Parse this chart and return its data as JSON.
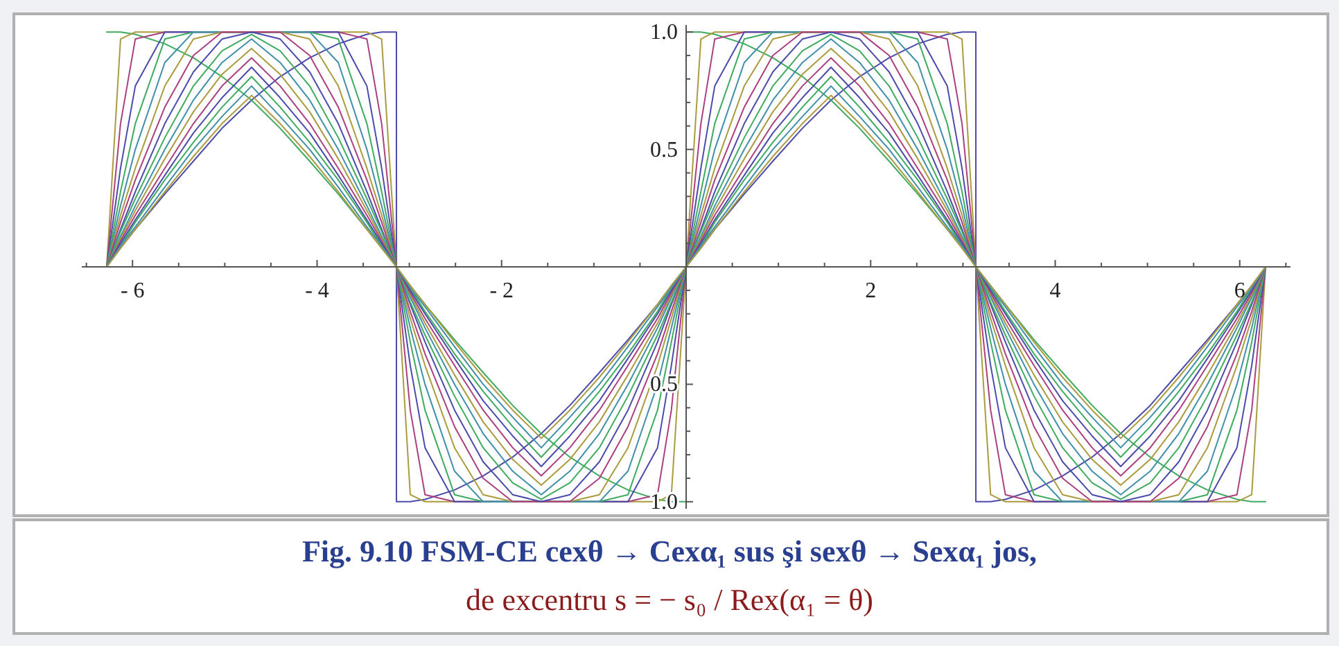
{
  "chart_data": {
    "type": "line",
    "title": "Fig. 9.10 FSM-CE cexθ → Cexα₁ sus şi sexθ → Sexα₁  jos,",
    "subtitle": "de excentru s = − s₀  /  Rex(α₁ = θ)",
    "xlim": [
      -6.55,
      6.55
    ],
    "ylim": [
      -1.03,
      1.03
    ],
    "xticks": [
      {
        "value": -6.5,
        "label": null
      },
      {
        "value": -6,
        "label": "- 6"
      },
      {
        "value": -5.5,
        "label": null
      },
      {
        "value": -5,
        "label": null
      },
      {
        "value": -4.5,
        "label": null
      },
      {
        "value": -4,
        "label": "- 4"
      },
      {
        "value": -3.5,
        "label": null
      },
      {
        "value": -3,
        "label": null
      },
      {
        "value": -2.5,
        "label": null
      },
      {
        "value": -2,
        "label": "- 2"
      },
      {
        "value": -1.5,
        "label": null
      },
      {
        "value": -1,
        "label": null
      },
      {
        "value": -0.5,
        "label": null
      },
      {
        "value": 0.5,
        "label": null
      },
      {
        "value": 1,
        "label": null
      },
      {
        "value": 1.5,
        "label": null
      },
      {
        "value": 2,
        "label": "2"
      },
      {
        "value": 2.5,
        "label": null
      },
      {
        "value": 3,
        "label": null
      },
      {
        "value": 3.5,
        "label": null
      },
      {
        "value": 4,
        "label": "4"
      },
      {
        "value": 4.5,
        "label": null
      },
      {
        "value": 5,
        "label": null
      },
      {
        "value": 5.5,
        "label": null
      },
      {
        "value": 6,
        "label": "6"
      },
      {
        "value": 6.5,
        "label": null
      }
    ],
    "yticks": [
      {
        "value": -1,
        "label": "1.0"
      },
      {
        "value": -0.9,
        "label": null
      },
      {
        "value": -0.8,
        "label": null
      },
      {
        "value": -0.7,
        "label": null
      },
      {
        "value": -0.6,
        "label": null
      },
      {
        "value": -0.5,
        "label": "0.5"
      },
      {
        "value": -0.4,
        "label": null
      },
      {
        "value": -0.3,
        "label": null
      },
      {
        "value": -0.2,
        "label": null
      },
      {
        "value": -0.1,
        "label": null
      },
      {
        "value": 0.1,
        "label": null
      },
      {
        "value": 0.2,
        "label": null
      },
      {
        "value": 0.3,
        "label": null
      },
      {
        "value": 0.4,
        "label": null
      },
      {
        "value": 0.5,
        "label": "0.5"
      },
      {
        "value": 0.6,
        "label": null
      },
      {
        "value": 0.7,
        "label": null
      },
      {
        "value": 0.8,
        "label": null
      },
      {
        "value": 0.9,
        "label": null
      },
      {
        "value": 1,
        "label": "1.0"
      }
    ],
    "x": [
      -6.28,
      -6.13,
      -5.97,
      -5.65,
      -5.34,
      -5.03,
      -4.71,
      -4.4,
      -4.08,
      -3.77,
      -3.46,
      -3.3,
      -3.14,
      -3.14,
      -2.99,
      -2.83,
      -2.51,
      -2.2,
      -1.88,
      -1.57,
      -1.26,
      -0.94,
      -0.63,
      -0.31,
      -0.16,
      0,
      0,
      0.16,
      0.31,
      0.63,
      0.94,
      1.26,
      1.57,
      1.88,
      2.2,
      2.51,
      2.83,
      2.99,
      3.14,
      3.14,
      3.3,
      3.46,
      3.77,
      4.08,
      4.4,
      4.71,
      5.03,
      5.34,
      5.65,
      5.97,
      6.13,
      6.28
    ],
    "series": [
      {
        "color": "#4b4bab",
        "values": [
          0,
          0.08,
          0.16,
          0.31,
          0.45,
          0.59,
          0.71,
          0.81,
          0.89,
          0.95,
          0.99,
          1,
          1,
          -1,
          -1,
          -0.99,
          -0.95,
          -0.89,
          -0.81,
          -0.71,
          -0.59,
          -0.45,
          -0.31,
          -0.16,
          -0.08,
          0,
          0,
          0.08,
          0.16,
          0.31,
          0.45,
          0.59,
          0.71,
          0.81,
          0.89,
          0.95,
          0.99,
          1,
          1,
          -1,
          -1,
          -0.99,
          -0.95,
          -0.89,
          -0.81,
          -0.71,
          -0.59,
          -0.45,
          -0.31,
          -0.16,
          -0.08,
          0
        ]
      },
      {
        "color": "#3fab5f",
        "values": [
          1,
          1,
          0.99,
          0.95,
          0.89,
          0.81,
          0.71,
          0.59,
          0.45,
          0.31,
          0.16,
          0.08,
          0,
          0,
          -0.08,
          -0.16,
          -0.31,
          -0.45,
          -0.59,
          -0.71,
          -0.81,
          -0.89,
          -0.95,
          -0.99,
          -1,
          -1,
          1,
          1,
          0.99,
          0.95,
          0.89,
          0.81,
          0.71,
          0.59,
          0.45,
          0.31,
          0.16,
          0.08,
          0,
          0,
          -0.08,
          -0.16,
          -0.31,
          -0.45,
          -0.59,
          -0.71,
          -0.81,
          -0.89,
          -0.95,
          -0.99,
          -1,
          -1
        ]
      },
      {
        "color": "#ab9b3f",
        "values": [
          0,
          0.97,
          1,
          1,
          1,
          1,
          1,
          1,
          1,
          1,
          1,
          0.97,
          0,
          0,
          -0.97,
          -1,
          -1,
          -1,
          -1,
          -1,
          -1,
          -1,
          -1,
          -1,
          -0.97,
          0,
          0,
          0.97,
          1,
          1,
          1,
          1,
          1,
          1,
          1,
          1,
          1,
          0.97,
          0,
          0,
          -0.97,
          -1,
          -1,
          -1,
          -1,
          -1,
          -1,
          -1,
          -1,
          -1,
          -0.97,
          0
        ]
      },
      {
        "color": "#ab3f7f",
        "values": [
          0,
          0.61,
          0.97,
          1,
          1,
          1,
          1,
          1,
          1,
          1,
          0.97,
          0.61,
          0,
          0,
          -0.61,
          -0.97,
          -1,
          -1,
          -1,
          -1,
          -1,
          -1,
          -1,
          -0.97,
          -0.61,
          0,
          0,
          0.61,
          0.97,
          1,
          1,
          1,
          1,
          1,
          1,
          1,
          0.97,
          0.61,
          0,
          0,
          -0.61,
          -0.97,
          -1,
          -1,
          -1,
          -1,
          -1,
          -1,
          -1,
          -0.97,
          -0.61,
          0
        ]
      },
      {
        "color": "#4b4bab",
        "values": [
          0,
          0.42,
          0.77,
          1,
          1,
          1,
          1,
          1,
          1,
          1,
          0.77,
          0.42,
          0,
          0,
          -0.42,
          -0.77,
          -1,
          -1,
          -1,
          -1,
          -1,
          -1,
          -1,
          -0.77,
          -0.42,
          0,
          0,
          0.42,
          0.77,
          1,
          1,
          1,
          1,
          1,
          1,
          1,
          0.77,
          0.42,
          0,
          0,
          -0.42,
          -0.77,
          -1,
          -1,
          -1,
          -1,
          -1,
          -1,
          -1,
          -0.77,
          -0.42,
          0
        ]
      },
      {
        "color": "#3fab5f",
        "values": [
          0,
          0.32,
          0.61,
          0.97,
          1,
          1,
          1,
          1,
          1,
          0.97,
          0.61,
          0.32,
          0,
          0,
          -0.32,
          -0.61,
          -0.97,
          -1,
          -1,
          -1,
          -1,
          -1,
          -0.97,
          -0.61,
          -0.32,
          0,
          0,
          0.32,
          0.61,
          0.97,
          1,
          1,
          1,
          1,
          1,
          0.97,
          0.61,
          0.32,
          0,
          0,
          -0.32,
          -0.61,
          -0.97,
          -1,
          -1,
          -1,
          -1,
          -1,
          -0.97,
          -0.61,
          -0.32,
          0
        ]
      },
      {
        "color": "#3f8fab",
        "values": [
          0,
          0.26,
          0.5,
          0.87,
          1,
          1,
          1,
          1,
          1,
          0.87,
          0.5,
          0.26,
          0,
          0,
          -0.26,
          -0.5,
          -0.87,
          -1,
          -1,
          -1,
          -1,
          -1,
          -0.87,
          -0.5,
          -0.26,
          0,
          0,
          0.26,
          0.5,
          0.87,
          1,
          1,
          1,
          1,
          1,
          0.87,
          0.5,
          0.26,
          0,
          0,
          -0.26,
          -0.5,
          -0.87,
          -1,
          -1,
          -1,
          -1,
          -1,
          -0.87,
          -0.5,
          -0.26,
          0
        ]
      },
      {
        "color": "#ab9b3f",
        "values": [
          0,
          0.22,
          0.42,
          0.77,
          0.97,
          1,
          1,
          1,
          0.97,
          0.77,
          0.42,
          0.22,
          0,
          0,
          -0.22,
          -0.42,
          -0.77,
          -0.97,
          -1,
          -1,
          -1,
          -0.97,
          -0.77,
          -0.42,
          -0.22,
          0,
          0,
          0.22,
          0.42,
          0.77,
          0.97,
          1,
          1,
          1,
          0.97,
          0.77,
          0.42,
          0.22,
          0,
          0,
          -0.22,
          -0.42,
          -0.77,
          -0.97,
          -1,
          -1,
          -1,
          -0.97,
          -0.77,
          -0.42,
          -0.22,
          0
        ]
      },
      {
        "color": "#ab3f7f",
        "values": [
          0,
          0.19,
          0.37,
          0.68,
          0.9,
          1,
          1,
          1,
          0.9,
          0.68,
          0.37,
          0.19,
          0,
          0,
          -0.19,
          -0.37,
          -0.68,
          -0.9,
          -1,
          -1,
          -1,
          -0.9,
          -0.68,
          -0.37,
          -0.19,
          0,
          0,
          0.19,
          0.37,
          0.68,
          0.9,
          1,
          1,
          1,
          0.9,
          0.68,
          0.37,
          0.19,
          0,
          0,
          -0.19,
          -0.37,
          -0.68,
          -0.9,
          -1,
          -1,
          -1,
          -0.9,
          -0.68,
          -0.37,
          -0.19,
          0
        ]
      },
      {
        "color": "#4b4bab",
        "values": [
          0,
          0.16,
          0.32,
          0.61,
          0.83,
          0.97,
          1,
          0.97,
          0.83,
          0.61,
          0.32,
          0.16,
          0,
          0,
          -0.16,
          -0.32,
          -0.61,
          -0.83,
          -0.97,
          -1,
          -0.97,
          -0.83,
          -0.61,
          -0.32,
          -0.16,
          0,
          0,
          0.16,
          0.32,
          0.61,
          0.83,
          0.97,
          1,
          0.97,
          0.83,
          0.61,
          0.32,
          0.16,
          0,
          0,
          -0.16,
          -0.32,
          -0.61,
          -0.83,
          -0.97,
          -1,
          -0.97,
          -0.83,
          -0.61,
          -0.32,
          -0.16,
          0
        ]
      },
      {
        "color": "#3fab5f",
        "values": [
          0,
          0.15,
          0.29,
          0.55,
          0.77,
          0.92,
          0.99,
          0.92,
          0.77,
          0.55,
          0.29,
          0.15,
          0,
          0,
          -0.15,
          -0.29,
          -0.55,
          -0.77,
          -0.92,
          -0.99,
          -0.92,
          -0.77,
          -0.55,
          -0.29,
          -0.15,
          0,
          0,
          0.15,
          0.29,
          0.55,
          0.77,
          0.92,
          0.99,
          0.92,
          0.77,
          0.55,
          0.29,
          0.15,
          0,
          0,
          -0.15,
          -0.29,
          -0.55,
          -0.77,
          -0.92,
          -0.99,
          -0.92,
          -0.77,
          -0.55,
          -0.29,
          -0.15,
          0
        ]
      },
      {
        "color": "#3f8fab",
        "values": [
          0,
          0.13,
          0.26,
          0.5,
          0.71,
          0.87,
          0.97,
          0.87,
          0.71,
          0.5,
          0.26,
          0.13,
          0,
          0,
          -0.13,
          -0.26,
          -0.5,
          -0.71,
          -0.87,
          -0.97,
          -0.87,
          -0.71,
          -0.5,
          -0.26,
          -0.13,
          0,
          0,
          0.13,
          0.26,
          0.5,
          0.71,
          0.87,
          0.97,
          0.87,
          0.71,
          0.5,
          0.26,
          0.13,
          0,
          0,
          -0.13,
          -0.26,
          -0.5,
          -0.71,
          -0.87,
          -0.97,
          -0.87,
          -0.71,
          -0.5,
          -0.26,
          -0.13,
          0
        ]
      },
      {
        "color": "#ab9b3f",
        "values": [
          0,
          0.12,
          0.24,
          0.46,
          0.66,
          0.82,
          0.93,
          0.82,
          0.66,
          0.46,
          0.24,
          0.12,
          0,
          0,
          -0.12,
          -0.24,
          -0.46,
          -0.66,
          -0.82,
          -0.93,
          -0.82,
          -0.66,
          -0.46,
          -0.24,
          -0.12,
          0,
          0,
          0.12,
          0.24,
          0.46,
          0.66,
          0.82,
          0.93,
          0.82,
          0.66,
          0.46,
          0.24,
          0.12,
          0,
          0,
          -0.12,
          -0.24,
          -0.46,
          -0.66,
          -0.82,
          -0.93,
          -0.82,
          -0.66,
          -0.46,
          -0.24,
          -0.12,
          0
        ]
      },
      {
        "color": "#ab3f7f",
        "values": [
          0,
          0.11,
          0.22,
          0.42,
          0.61,
          0.77,
          0.89,
          0.77,
          0.61,
          0.42,
          0.22,
          0.11,
          0,
          0,
          -0.11,
          -0.22,
          -0.42,
          -0.61,
          -0.77,
          -0.89,
          -0.77,
          -0.61,
          -0.42,
          -0.22,
          -0.11,
          0,
          0,
          0.11,
          0.22,
          0.42,
          0.61,
          0.77,
          0.89,
          0.77,
          0.61,
          0.42,
          0.22,
          0.11,
          0,
          0,
          -0.11,
          -0.22,
          -0.42,
          -0.61,
          -0.77,
          -0.89,
          -0.77,
          -0.61,
          -0.42,
          -0.22,
          -0.11,
          0
        ]
      },
      {
        "color": "#4b4bab",
        "values": [
          0,
          0.1,
          0.2,
          0.39,
          0.57,
          0.72,
          0.85,
          0.72,
          0.57,
          0.39,
          0.2,
          0.1,
          0,
          0,
          -0.1,
          -0.2,
          -0.39,
          -0.57,
          -0.72,
          -0.85,
          -0.72,
          -0.57,
          -0.39,
          -0.2,
          -0.1,
          0,
          0,
          0.1,
          0.2,
          0.39,
          0.57,
          0.72,
          0.85,
          0.72,
          0.57,
          0.39,
          0.2,
          0.1,
          0,
          0,
          -0.1,
          -0.2,
          -0.39,
          -0.57,
          -0.72,
          -0.85,
          -0.72,
          -0.57,
          -0.39,
          -0.2,
          -0.1,
          0
        ]
      },
      {
        "color": "#3fab5f",
        "values": [
          0,
          0.09,
          0.19,
          0.37,
          0.53,
          0.68,
          0.81,
          0.68,
          0.53,
          0.37,
          0.19,
          0.09,
          0,
          0,
          -0.09,
          -0.19,
          -0.37,
          -0.53,
          -0.68,
          -0.81,
          -0.68,
          -0.53,
          -0.37,
          -0.19,
          -0.09,
          0,
          0,
          0.09,
          0.19,
          0.37,
          0.53,
          0.68,
          0.81,
          0.68,
          0.53,
          0.37,
          0.19,
          0.09,
          0,
          0,
          -0.09,
          -0.19,
          -0.37,
          -0.53,
          -0.68,
          -0.81,
          -0.68,
          -0.53,
          -0.37,
          -0.19,
          -0.09,
          0
        ]
      },
      {
        "color": "#3f8fab",
        "values": [
          0,
          0.09,
          0.17,
          0.34,
          0.5,
          0.64,
          0.77,
          0.64,
          0.5,
          0.34,
          0.17,
          0.09,
          0,
          0,
          -0.09,
          -0.17,
          -0.34,
          -0.5,
          -0.64,
          -0.77,
          -0.64,
          -0.5,
          -0.34,
          -0.17,
          -0.09,
          0,
          0,
          0.09,
          0.17,
          0.34,
          0.5,
          0.64,
          0.77,
          0.64,
          0.5,
          0.34,
          0.17,
          0.09,
          0,
          0,
          -0.09,
          -0.17,
          -0.34,
          -0.5,
          -0.64,
          -0.77,
          -0.64,
          -0.5,
          -0.34,
          -0.17,
          -0.09,
          0
        ]
      },
      {
        "color": "#ab9b3f",
        "values": [
          0,
          0.08,
          0.16,
          0.32,
          0.47,
          0.61,
          0.73,
          0.61,
          0.47,
          0.32,
          0.16,
          0.08,
          0,
          0,
          -0.08,
          -0.16,
          -0.32,
          -0.47,
          -0.61,
          -0.73,
          -0.61,
          -0.47,
          -0.32,
          -0.16,
          -0.08,
          0,
          0,
          0.08,
          0.16,
          0.32,
          0.47,
          0.61,
          0.73,
          0.61,
          0.47,
          0.32,
          0.16,
          0.08,
          0,
          0,
          -0.08,
          -0.16,
          -0.32,
          -0.47,
          -0.61,
          -0.73,
          -0.61,
          -0.47,
          -0.32,
          -0.16,
          -0.08,
          0
        ]
      }
    ]
  }
}
